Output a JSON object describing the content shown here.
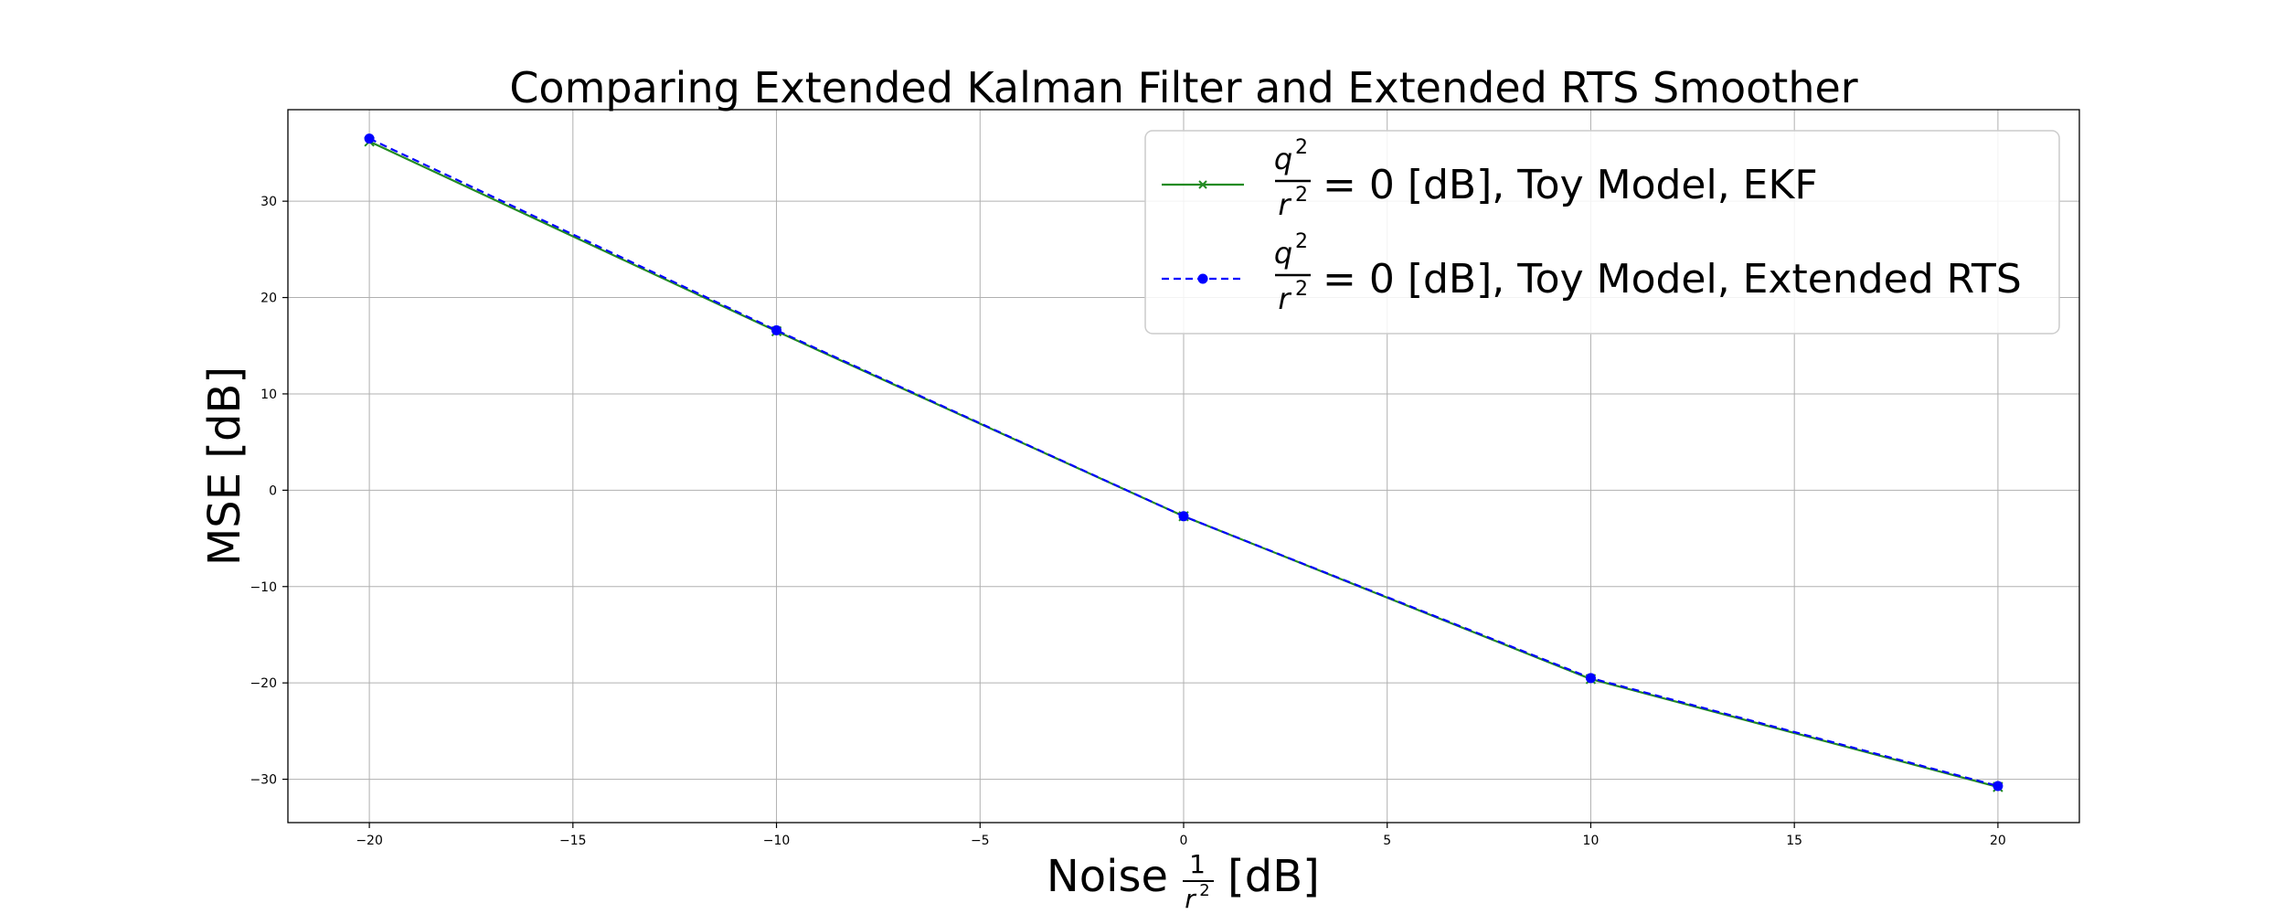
{
  "chart_data": {
    "type": "line",
    "title": "Comparing Extended Kalman Filter and Extended RTS Smoother",
    "xlabel": {
      "prefix": "Noise",
      "frac_num": "1",
      "frac_den": "r",
      "frac_den_sup": "2",
      "suffix": "[dB]"
    },
    "ylabel": "MSE [dB]",
    "xlim": [
      -22,
      22
    ],
    "ylim": [
      -34.5,
      39.5
    ],
    "xticks": [
      -20,
      -15,
      -10,
      -5,
      0,
      5,
      10,
      15,
      20
    ],
    "yticks": [
      -30,
      -20,
      -10,
      0,
      10,
      20,
      30
    ],
    "xtick_labels": [
      "−20",
      "−15",
      "−10",
      "−5",
      "0",
      "5",
      "10",
      "15",
      "20"
    ],
    "ytick_labels": [
      "−30",
      "−20",
      "−10",
      "0",
      "10",
      "20",
      "30"
    ],
    "grid": true,
    "legend_position": "top-right",
    "series": [
      {
        "name_parts": {
          "num": "q",
          "num_sup": "2",
          "den": "r",
          "den_sup": "2",
          "rest": "= 0 [dB], Toy Model, EKF"
        },
        "x": [
          -20,
          -10,
          0,
          10,
          20
        ],
        "y": [
          36.2,
          16.5,
          -2.7,
          -19.6,
          -30.8
        ],
        "color": "#228B22",
        "line_style": "solid",
        "marker": "x"
      },
      {
        "name_parts": {
          "num": "q",
          "num_sup": "2",
          "den": "r",
          "den_sup": "2",
          "rest": "= 0 [dB], Toy Model, Extended RTS"
        },
        "x": [
          -20,
          -10,
          0,
          10,
          20
        ],
        "y": [
          36.5,
          16.6,
          -2.7,
          -19.5,
          -30.7
        ],
        "color": "#0000FF",
        "line_style": "dashed",
        "marker": "dot"
      }
    ]
  }
}
